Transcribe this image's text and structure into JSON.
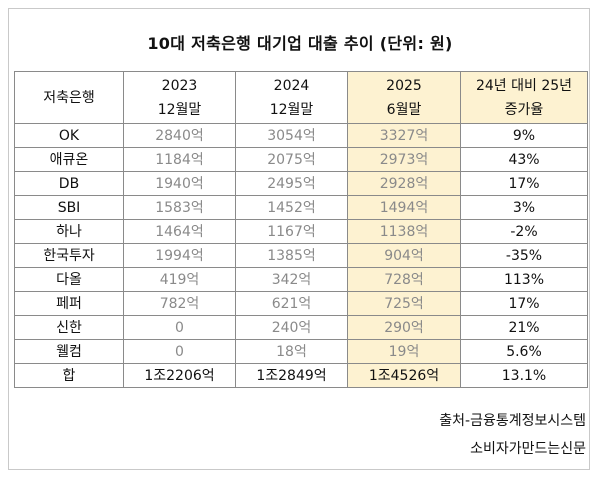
{
  "title": "10대 저축은행 대기업 대출 추이 (단위: 원)",
  "table": {
    "headers": [
      {
        "line1": "저축은행",
        "line2": ""
      },
      {
        "line1": "2023",
        "line2": "12월말"
      },
      {
        "line1": "2024",
        "line2": "12월말"
      },
      {
        "line1": "2025",
        "line2": "6월말"
      },
      {
        "line1": "24년 대비 25년",
        "line2": "증가율"
      }
    ],
    "rows": [
      {
        "bank": "OK",
        "y2023": "2840억",
        "y2024": "3054억",
        "y2025": "3327억",
        "rate": "9%"
      },
      {
        "bank": "애큐온",
        "y2023": "1184억",
        "y2024": "2075억",
        "y2025": "2973억",
        "rate": "43%"
      },
      {
        "bank": "DB",
        "y2023": "1940억",
        "y2024": "2495억",
        "y2025": "2928억",
        "rate": "17%"
      },
      {
        "bank": "SBI",
        "y2023": "1583억",
        "y2024": "1452억",
        "y2025": "1494억",
        "rate": "3%"
      },
      {
        "bank": "하나",
        "y2023": "1464억",
        "y2024": "1167억",
        "y2025": "1138억",
        "rate": "-2%"
      },
      {
        "bank": "한국투자",
        "y2023": "1994억",
        "y2024": "1385억",
        "y2025": "904억",
        "rate": "-35%"
      },
      {
        "bank": "다올",
        "y2023": "419억",
        "y2024": "342억",
        "y2025": "728억",
        "rate": "113%"
      },
      {
        "bank": "페퍼",
        "y2023": "782억",
        "y2024": "621억",
        "y2025": "725억",
        "rate": "17%"
      },
      {
        "bank": "신한",
        "y2023": "0",
        "y2024": "240억",
        "y2025": "290억",
        "rate": "21%"
      },
      {
        "bank": "웰컴",
        "y2023": "0",
        "y2024": "18억",
        "y2025": "19억",
        "rate": "5.6%"
      }
    ],
    "total": {
      "bank": "합",
      "y2023": "1조2206억",
      "y2024": "1조2849억",
      "y2025": "1조4526억",
      "rate": "13.1%"
    }
  },
  "source": "출처-금융통계정보시스템",
  "publisher": "소비자가만드는신문",
  "colors": {
    "highlight": "#fdf2d1",
    "border": "#8a8a8a",
    "value_text": "#8a8a8a"
  }
}
